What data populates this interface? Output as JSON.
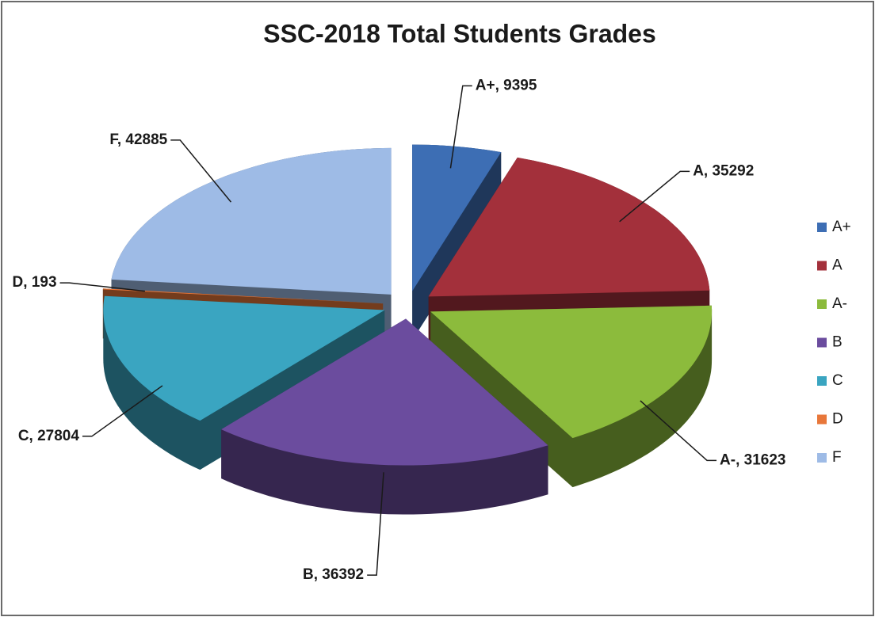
{
  "chart_data": {
    "type": "pie",
    "title": "SSC-2018 Total Students Grades",
    "categories": [
      "A+",
      "A",
      "A-",
      "B",
      "C",
      "D",
      "F"
    ],
    "values": [
      9395,
      35292,
      31623,
      36392,
      27804,
      193,
      42885
    ],
    "value_labels": [
      "A+, 9395",
      "A, 35292",
      "A-, 31623",
      "B, 36392",
      "C, 27804",
      "D, 193",
      "F, 42885"
    ],
    "colors": [
      "#3d6eb4",
      "#a3303b",
      "#8cbb3c",
      "#6b4c9e",
      "#3aa5c1",
      "#e8773a",
      "#9ebbe6"
    ],
    "legend": "right"
  }
}
